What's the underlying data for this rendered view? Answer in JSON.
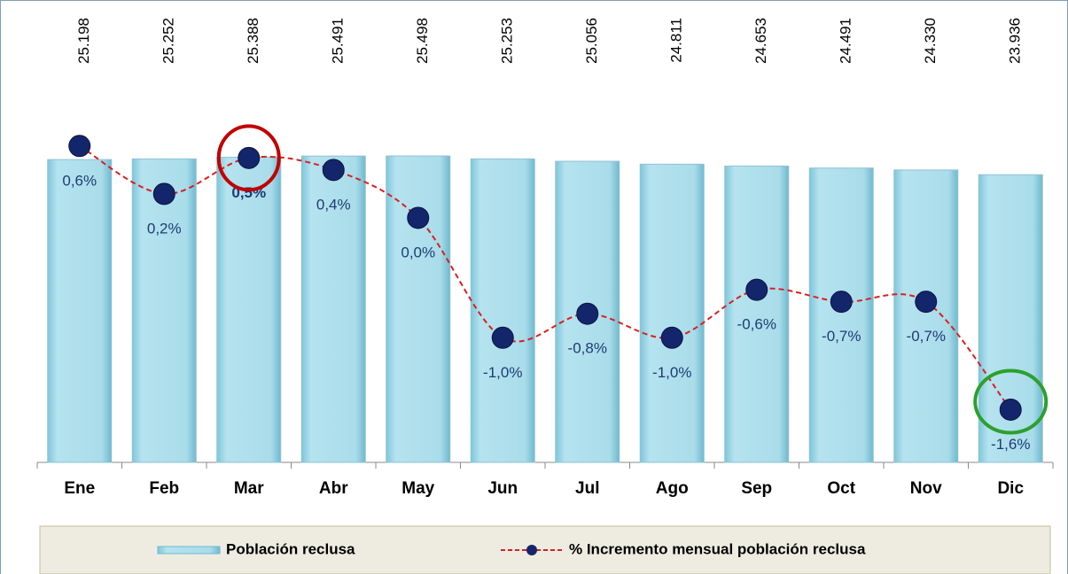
{
  "chart_data": {
    "type": "bar-line",
    "categories": [
      "Ene",
      "Feb",
      "Mar",
      "Abr",
      "May",
      "Jun",
      "Jul",
      "Ago",
      "Sep",
      "Oct",
      "Nov",
      "Dic"
    ],
    "series": [
      {
        "name": "Población reclusa",
        "type": "bar",
        "color": "#a9dcea",
        "values": [
          25198,
          25252,
          25388,
          25491,
          25498,
          25253,
          25056,
          24811,
          24653,
          24491,
          24330,
          23936
        ],
        "value_labels": [
          "25.198",
          "25.252",
          "25.388",
          "25.491",
          "25.498",
          "25.253",
          "25.056",
          "24.811",
          "24.653",
          "24.491",
          "24.330",
          "23.936"
        ]
      },
      {
        "name": "% Incremento mensual población reclusa",
        "type": "line",
        "axis": "y2",
        "color": "#d9201f",
        "marker_color": "#13266b",
        "values": [
          0.6,
          0.2,
          0.5,
          0.4,
          0.0,
          -1.0,
          -0.8,
          -1.0,
          -0.6,
          -0.7,
          -0.7,
          -1.6
        ],
        "value_labels": [
          "0,6%",
          "0,2%",
          "0,5%",
          "0,4%",
          "0,0%",
          "-1,0%",
          "-0,8%",
          "-1,0%",
          "-0,6%",
          "-0,7%",
          "-0,7%",
          "-1,6%"
        ]
      }
    ],
    "ylim": [
      0,
      37000
    ],
    "y2lim": [
      -2.04,
      1.67
    ],
    "legend": "bottom"
  }
}
